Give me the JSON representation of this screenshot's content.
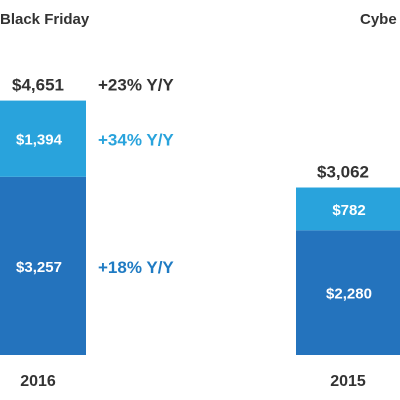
{
  "chart_data": [
    {
      "type": "bar",
      "stacked": true,
      "title": "Black Friday",
      "categories": [
        "2016"
      ],
      "total_labels": [
        "$4,651"
      ],
      "series": [
        {
          "values": [
            3257
          ],
          "labels": [
            "$3,257"
          ],
          "growth": "+18% Y/Y",
          "color": "#2473bd"
        },
        {
          "values": [
            1394
          ],
          "labels": [
            "$1,394"
          ],
          "growth": "+34% Y/Y",
          "color": "#29a3dc"
        }
      ],
      "total_growth": "+23% Y/Y"
    },
    {
      "type": "bar",
      "stacked": true,
      "title": "Cybe",
      "categories": [
        "2015"
      ],
      "total_labels": [
        "$3,062"
      ],
      "series": [
        {
          "values": [
            2280
          ],
          "labels": [
            "$2,280"
          ],
          "color": "#2473bd"
        },
        {
          "values": [
            782
          ],
          "labels": [
            "$782"
          ],
          "color": "#29a3dc"
        }
      ]
    }
  ]
}
